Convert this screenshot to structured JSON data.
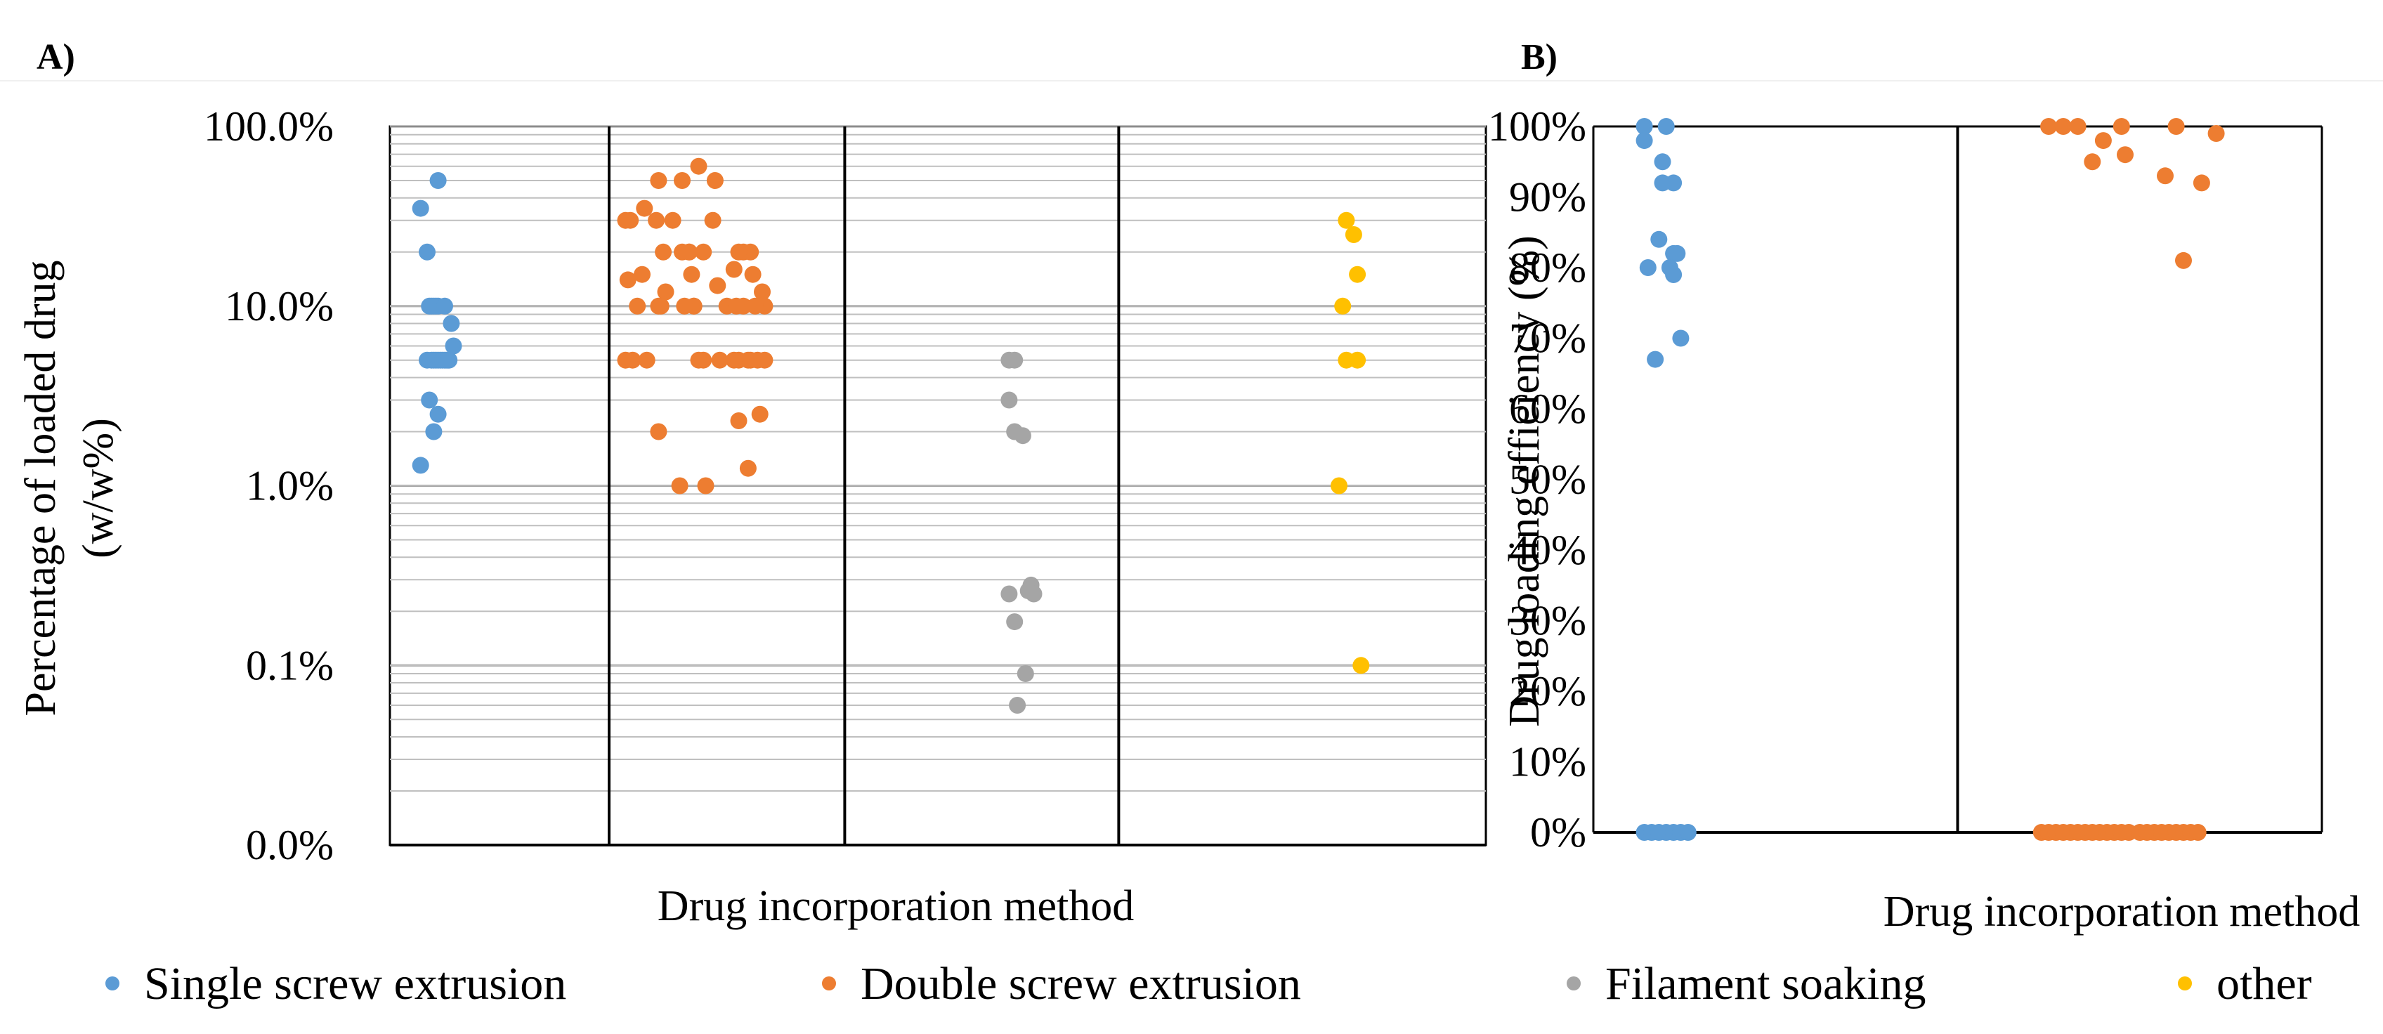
{
  "colors": {
    "single_screw": "#5b9bd5",
    "double_screw": "#ed7d31",
    "filament_soaking": "#a5a5a5",
    "other": "#ffc000",
    "gridline": "#bfbfbf",
    "axis": "#000000"
  },
  "legend": {
    "items": [
      {
        "label": "Single screw extrusion",
        "color": "#5b9bd5"
      },
      {
        "label": "Double screw extrusion",
        "color": "#ed7d31"
      },
      {
        "label": "Filament soaking",
        "color": "#a5a5a5"
      },
      {
        "label": "other",
        "color": "#ffc000"
      }
    ]
  },
  "chart_data": [
    {
      "panel": "A)",
      "type": "scatter",
      "xlabel": "Drug incorporation method",
      "ylabel_line1": "Percentage of loaded drug",
      "ylabel_line2": "(w/w%)",
      "yscale": "log",
      "ylim": [
        0.01,
        100
      ],
      "ytick_values": [
        0.01,
        0.1,
        1,
        10,
        100
      ],
      "ytick_labels": [
        "0.0%",
        "0.1%",
        "1.0%",
        "10.0%",
        "100.0%"
      ],
      "grid": true,
      "categories": [
        "Single screw extrusion",
        "Double screw extrusion",
        "Filament soaking",
        "other"
      ],
      "series": [
        {
          "name": "Single screw extrusion",
          "offsets": [
            0.22,
            0.14,
            0.17,
            0.18,
            0.22,
            0.19,
            0.2,
            0.21,
            0.25,
            0.28,
            0.17,
            0.19,
            0.2,
            0.21,
            0.22,
            0.23,
            0.24,
            0.25,
            0.26,
            0.27,
            0.29,
            0.18,
            0.22,
            0.14,
            0.2
          ],
          "values": [
            50,
            35,
            20,
            10,
            10,
            10,
            10,
            10,
            10,
            8,
            5,
            5,
            5,
            5,
            5,
            5,
            5,
            5,
            5,
            5,
            6,
            3,
            2.5,
            1.3,
            2
          ]
        },
        {
          "name": "Double screw extrusion",
          "offsets": [
            0.38,
            0.45,
            0.21,
            0.31,
            0.15,
            0.27,
            0.09,
            0.2,
            0.07,
            0.44,
            0.6,
            0.34,
            0.31,
            0.4,
            0.57,
            0.23,
            0.55,
            0.34,
            0.53,
            0.35,
            0.61,
            0.08,
            0.14,
            0.24,
            0.46,
            0.65,
            0.12,
            0.22,
            0.36,
            0.5,
            0.57,
            0.66,
            0.36,
            0.62,
            0.54,
            0.21,
            0.32,
            0.4,
            0.53,
            0.59,
            0.63,
            0.07,
            0.1,
            0.16,
            0.38,
            0.47,
            0.55,
            0.6,
            0.66,
            0.64,
            0.55,
            0.59,
            0.21,
            0.3,
            0.41
          ],
          "values": [
            60,
            50,
            50,
            50,
            35,
            30,
            30,
            30,
            30,
            30,
            20,
            20,
            20,
            20,
            20,
            20,
            20,
            20,
            16,
            15,
            15,
            14,
            15,
            12,
            13,
            12,
            10,
            10,
            10,
            10,
            10,
            10,
            10,
            10,
            10,
            10,
            10,
            5,
            5,
            5,
            5,
            5,
            5,
            5,
            5,
            5,
            5,
            5,
            5,
            2.5,
            2.3,
            1.25,
            2,
            1,
            1
          ]
        },
        {
          "name": "Filament soaking",
          "offsets": [
            0.6,
            0.62,
            0.6,
            0.62,
            0.65,
            0.6,
            0.68,
            0.69,
            0.62,
            0.66,
            0.63,
            0.67
          ],
          "values": [
            5,
            5,
            3,
            2,
            1.9,
            0.25,
            0.28,
            0.25,
            0.175,
            0.09,
            0.06,
            0.26
          ]
        },
        {
          "name": "other",
          "offsets": [
            0.62,
            0.64,
            0.65,
            0.61,
            0.62,
            0.65,
            0.6,
            0.66
          ],
          "values": [
            30,
            25,
            15,
            10,
            5,
            5,
            1,
            0.1
          ]
        }
      ]
    },
    {
      "panel": "B)",
      "type": "scatter",
      "xlabel": "Drug incorporation method",
      "ylabel": "Drug loading efficiency (%)",
      "ylim": [
        0,
        100
      ],
      "ytick_values": [
        0,
        10,
        20,
        30,
        40,
        50,
        60,
        70,
        80,
        90,
        100
      ],
      "ytick_labels": [
        "0%",
        "10%",
        "20%",
        "30%",
        "40%",
        "50%",
        "60%",
        "70%",
        "80%",
        "90%",
        "100%"
      ],
      "categories": [
        "Single screw extrusion",
        "Double screw extrusion"
      ],
      "series": [
        {
          "name": "Single screw extrusion",
          "offsets": [
            0.14,
            0.2,
            0.14,
            0.19,
            0.22,
            0.19,
            0.18,
            0.22,
            0.23,
            0.15,
            0.21,
            0.22,
            0.24,
            0.17,
            0.14,
            0.16,
            0.18,
            0.2,
            0.22,
            0.24,
            0.26
          ],
          "values": [
            100,
            100,
            98,
            95,
            92,
            92,
            84,
            82,
            82,
            80,
            80,
            79,
            70,
            67,
            0,
            0,
            0,
            0,
            0,
            0,
            0
          ]
        },
        {
          "name": "Double screw extrusion",
          "offsets": [
            0.25,
            0.29,
            0.33,
            0.45,
            0.6,
            0.4,
            0.46,
            0.37,
            0.71,
            0.57,
            0.67,
            0.62,
            0.23,
            0.25,
            0.27,
            0.29,
            0.31,
            0.33,
            0.35,
            0.37,
            0.39,
            0.41,
            0.43,
            0.45,
            0.47,
            0.5,
            0.52,
            0.54,
            0.56,
            0.58,
            0.6,
            0.62,
            0.64,
            0.66
          ],
          "values": [
            100,
            100,
            100,
            100,
            100,
            98,
            96,
            95,
            99,
            93,
            92,
            81,
            0,
            0,
            0,
            0,
            0,
            0,
            0,
            0,
            0,
            0,
            0,
            0,
            0,
            0,
            0,
            0,
            0,
            0,
            0,
            0,
            0,
            0
          ]
        }
      ]
    }
  ]
}
